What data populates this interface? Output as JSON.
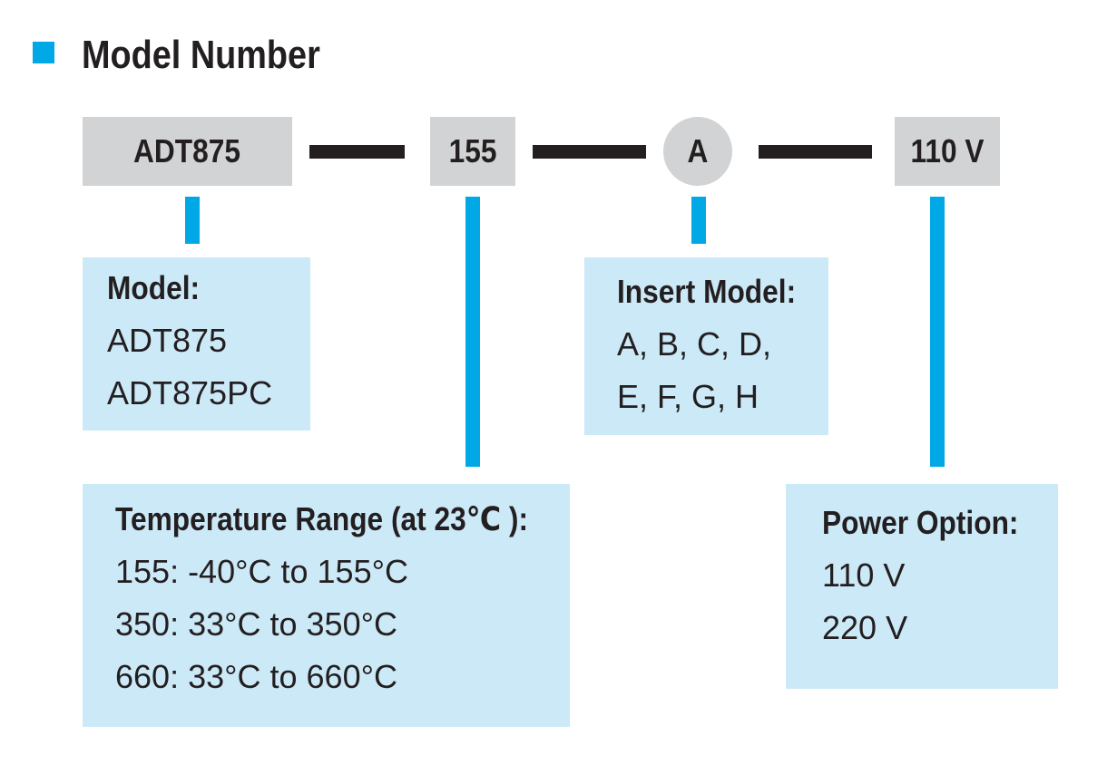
{
  "title": "Model Number",
  "segments": {
    "model": "ADT875",
    "temperature": "155",
    "insert": "A",
    "power": "110 V"
  },
  "options": {
    "model": {
      "heading": "Model:",
      "lines": [
        "ADT875",
        "ADT875PC"
      ]
    },
    "insert": {
      "heading": "Insert Model:",
      "lines": [
        "A, B, C, D,",
        "E, F, G, H"
      ]
    },
    "temperature": {
      "heading": "Temperature Range (at 23℃ ):",
      "lines": [
        "155: -40°C to 155°C",
        "350: 33°C to 350°C",
        "660: 33°C to 660°C"
      ]
    },
    "power": {
      "heading": "Power Option:",
      "lines": [
        "110 V",
        "220 V"
      ]
    }
  },
  "colors": {
    "accent": "#00a8e6",
    "segment_fill": "#d1d3d4",
    "option_fill": "#cce9f8",
    "dash": "#231f20",
    "text": "#231f20"
  }
}
